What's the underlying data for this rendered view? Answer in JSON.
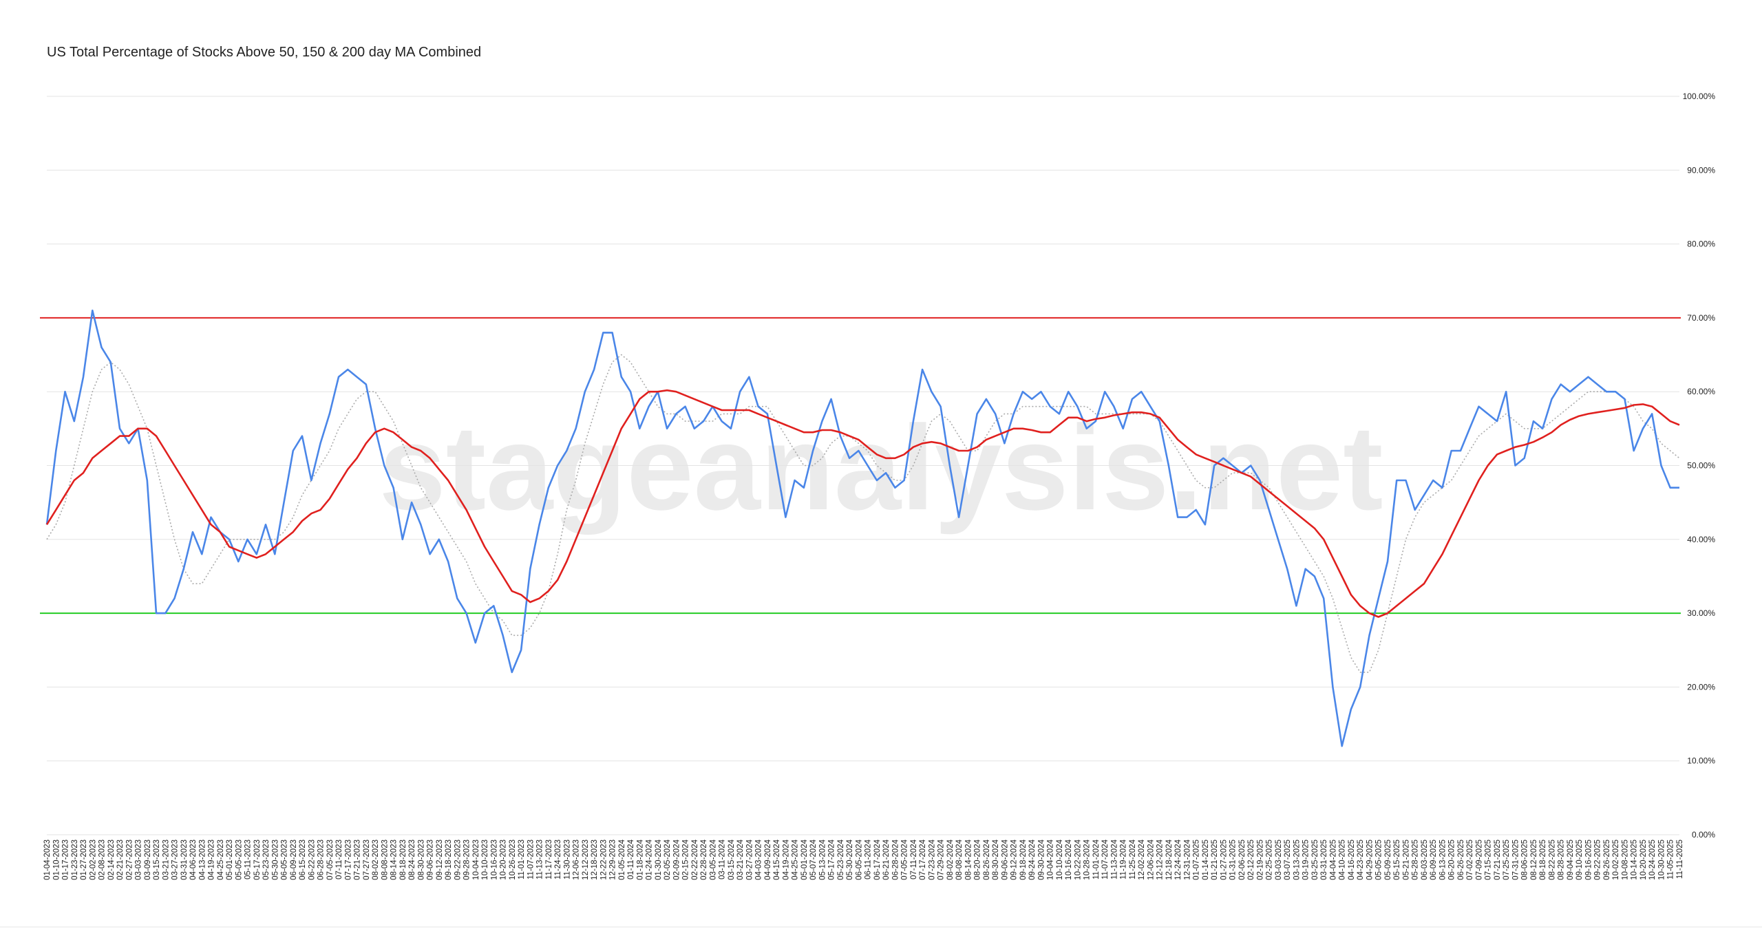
{
  "chart_data": {
    "type": "line",
    "title": "US Total Percentage of Stocks Above 50, 150 & 200 day MA Combined",
    "watermark": "stageanalysis.net",
    "categories": [
      "01-04-2023",
      "01-10-2023",
      "01-17-2023",
      "01-23-2023",
      "01-27-2023",
      "02-02-2023",
      "02-08-2023",
      "02-14-2023",
      "02-21-2023",
      "02-27-2023",
      "03-03-2023",
      "03-09-2023",
      "03-15-2023",
      "03-21-2023",
      "03-27-2023",
      "03-31-2023",
      "04-06-2023",
      "04-13-2023",
      "04-19-2023",
      "04-25-2023",
      "05-01-2023",
      "05-05-2023",
      "05-11-2023",
      "05-17-2023",
      "05-23-2023",
      "05-30-2023",
      "06-05-2023",
      "06-09-2023",
      "06-15-2023",
      "06-22-2023",
      "06-28-2023",
      "07-05-2023",
      "07-11-2023",
      "07-17-2023",
      "07-21-2023",
      "07-27-2023",
      "08-02-2023",
      "08-08-2023",
      "08-14-2023",
      "08-18-2023",
      "08-24-2023",
      "08-30-2023",
      "09-06-2023",
      "09-12-2023",
      "09-18-2023",
      "09-22-2023",
      "09-28-2023",
      "10-04-2023",
      "10-10-2023",
      "10-16-2023",
      "10-20-2023",
      "10-26-2023",
      "11-01-2023",
      "11-07-2023",
      "11-13-2023",
      "11-17-2023",
      "11-24-2023",
      "11-30-2023",
      "12-06-2023",
      "12-12-2023",
      "12-18-2023",
      "12-22-2023",
      "12-29-2023",
      "01-05-2024",
      "01-11-2024",
      "01-18-2024",
      "01-24-2024",
      "01-30-2024",
      "02-05-2024",
      "02-09-2024",
      "02-15-2024",
      "02-22-2024",
      "02-28-2024",
      "03-05-2024",
      "03-11-2024",
      "03-15-2024",
      "03-21-2024",
      "03-27-2024",
      "04-03-2024",
      "04-09-2024",
      "04-15-2024",
      "04-19-2024",
      "04-25-2024",
      "05-01-2024",
      "05-07-2024",
      "05-13-2024",
      "05-17-2024",
      "05-23-2024",
      "05-30-2024",
      "06-05-2024",
      "06-11-2024",
      "06-17-2024",
      "06-21-2024",
      "06-28-2024",
      "07-05-2024",
      "07-11-2024",
      "07-17-2024",
      "07-23-2024",
      "07-29-2024",
      "08-02-2024",
      "08-08-2024",
      "08-14-2024",
      "08-20-2024",
      "08-26-2024",
      "08-30-2024",
      "09-06-2024",
      "09-12-2024",
      "09-18-2024",
      "09-24-2024",
      "09-30-2024",
      "10-04-2024",
      "10-10-2024",
      "10-16-2024",
      "10-22-2024",
      "10-28-2024",
      "11-01-2024",
      "11-07-2024",
      "11-13-2024",
      "11-19-2024",
      "11-25-2024",
      "12-02-2024",
      "12-06-2024",
      "12-12-2024",
      "12-18-2024",
      "12-24-2024",
      "12-31-2024",
      "01-07-2025",
      "01-14-2025",
      "01-21-2025",
      "01-27-2025",
      "01-31-2025",
      "02-06-2025",
      "02-12-2025",
      "02-19-2025",
      "02-25-2025",
      "03-03-2025",
      "03-07-2025",
      "03-13-2025",
      "03-19-2025",
      "03-25-2025",
      "03-31-2025",
      "04-04-2025",
      "04-10-2025",
      "04-16-2025",
      "04-23-2025",
      "04-29-2025",
      "05-05-2025",
      "05-09-2025",
      "05-15-2025",
      "05-21-2025",
      "05-28-2025",
      "06-03-2025",
      "06-09-2025",
      "06-13-2025",
      "06-20-2025",
      "06-26-2025",
      "07-02-2025",
      "07-09-2025",
      "07-15-2025",
      "07-21-2025",
      "07-25-2025",
      "07-31-2025",
      "08-06-2025",
      "08-12-2025",
      "08-18-2025",
      "08-22-2025",
      "08-28-2025",
      "09-04-2025",
      "09-10-2025",
      "09-16-2025",
      "09-22-2025",
      "09-26-2025",
      "10-02-2025",
      "10-08-2025",
      "10-14-2025",
      "10-20-2025",
      "10-24-2025",
      "10-30-2025",
      "11-05-2025",
      "11-11-2025"
    ],
    "series": [
      {
        "color": "#aaaaaa",
        "dash": true,
        "values": [
          40,
          42,
          45,
          50,
          55,
          60,
          63,
          64,
          63,
          61,
          58,
          55,
          50,
          45,
          40,
          36,
          34,
          34,
          36,
          38,
          40,
          40,
          40,
          40,
          40,
          40,
          41,
          43,
          46,
          48,
          50,
          52,
          55,
          57,
          59,
          60,
          60,
          58,
          56,
          53,
          50,
          47,
          45,
          43,
          41,
          39,
          37,
          34,
          32,
          30,
          29,
          27,
          27,
          28,
          30,
          33,
          38,
          44,
          48,
          53,
          57,
          61,
          64,
          65,
          64,
          62,
          60,
          58,
          57,
          57,
          56,
          56,
          56,
          56,
          57,
          57,
          57,
          58,
          58,
          58,
          56,
          54,
          52,
          50,
          50,
          51,
          53,
          54,
          54,
          53,
          52,
          50,
          49,
          48,
          48,
          50,
          53,
          56,
          57,
          56,
          54,
          52,
          52,
          54,
          56,
          57,
          57,
          58,
          58,
          58,
          58,
          58,
          58,
          58,
          58,
          57,
          57,
          57,
          57,
          57,
          57,
          57,
          56,
          54,
          52,
          50,
          48,
          47,
          47,
          48,
          49,
          49,
          49,
          48,
          47,
          45,
          43,
          41,
          39,
          37,
          35,
          32,
          28,
          24,
          22,
          22,
          25,
          30,
          35,
          40,
          43,
          45,
          46,
          47,
          48,
          50,
          52,
          54,
          55,
          56,
          57,
          56,
          55,
          55,
          55,
          56,
          57,
          58,
          59,
          60,
          60,
          60,
          60,
          59,
          58,
          56,
          55,
          53,
          52,
          51
        ]
      },
      {
        "color": "#4a86e8",
        "dash": false,
        "values": [
          42,
          52,
          60,
          56,
          62,
          71,
          66,
          64,
          55,
          53,
          55,
          48,
          30,
          30,
          32,
          36,
          41,
          38,
          43,
          41,
          40,
          37,
          40,
          38,
          42,
          38,
          45,
          52,
          54,
          48,
          53,
          57,
          62,
          63,
          62,
          61,
          55,
          50,
          47,
          40,
          45,
          42,
          38,
          40,
          37,
          32,
          30,
          26,
          30,
          31,
          27,
          22,
          25,
          36,
          42,
          47,
          50,
          52,
          55,
          60,
          63,
          68,
          68,
          62,
          60,
          55,
          58,
          60,
          55,
          57,
          58,
          55,
          56,
          58,
          56,
          55,
          60,
          62,
          58,
          57,
          50,
          43,
          48,
          47,
          52,
          56,
          59,
          54,
          51,
          52,
          50,
          48,
          49,
          47,
          48,
          56,
          63,
          60,
          58,
          50,
          43,
          50,
          57,
          59,
          57,
          53,
          57,
          60,
          59,
          60,
          58,
          57,
          60,
          58,
          55,
          56,
          60,
          58,
          55,
          59,
          60,
          58,
          56,
          50,
          43,
          43,
          44,
          42,
          50,
          51,
          50,
          49,
          50,
          48,
          44,
          40,
          36,
          31,
          36,
          35,
          32,
          20,
          12,
          17,
          20,
          27,
          32,
          37,
          48,
          48,
          44,
          46,
          48,
          47,
          52,
          52,
          55,
          58,
          57,
          56,
          60,
          50,
          51,
          56,
          55,
          59,
          61,
          60,
          61,
          62,
          61,
          60,
          60,
          59,
          52,
          55,
          57,
          50,
          47,
          47
        ]
      },
      {
        "color": "#e0201e",
        "dash": false,
        "values": [
          42,
          44,
          46,
          48,
          49,
          51,
          52,
          53,
          54,
          54,
          55,
          55,
          54,
          52,
          50,
          48,
          46,
          44,
          42,
          41,
          39,
          38.5,
          38,
          37.5,
          38,
          39,
          40,
          41,
          42.5,
          43.5,
          44,
          45.5,
          47.5,
          49.5,
          51,
          53,
          54.5,
          55,
          54.5,
          53.5,
          52.5,
          52,
          51,
          49.5,
          48,
          46,
          44,
          41.5,
          39,
          37,
          35,
          33,
          32.5,
          31.5,
          32,
          33,
          34.5,
          37,
          40,
          43,
          46,
          49,
          52,
          55,
          57,
          59,
          60,
          60,
          60.2,
          60,
          59.5,
          59,
          58.5,
          58,
          57.5,
          57.5,
          57.5,
          57.5,
          57,
          56.5,
          56,
          55.5,
          55,
          54.5,
          54.5,
          54.8,
          54.8,
          54.5,
          54,
          53.5,
          52.5,
          51.5,
          51,
          51,
          51.5,
          52.5,
          53,
          53.2,
          53,
          52.5,
          52,
          52,
          52.5,
          53.5,
          54,
          54.5,
          55,
          55,
          54.8,
          54.5,
          54.5,
          55.5,
          56.5,
          56.5,
          56,
          56.3,
          56.5,
          56.8,
          57,
          57.2,
          57.2,
          57,
          56.5,
          55,
          53.5,
          52.5,
          51.5,
          51,
          50.5,
          50,
          49.5,
          49,
          48.5,
          47.5,
          46.5,
          45.5,
          44.5,
          43.5,
          42.5,
          41.5,
          40,
          37.5,
          35,
          32.5,
          31,
          30,
          29.5,
          30,
          31,
          32,
          33,
          34,
          36,
          38,
          40.5,
          43,
          45.5,
          48,
          50,
          51.5,
          52,
          52.5,
          52.8,
          53.2,
          53.8,
          54.5,
          55.5,
          56.2,
          56.7,
          57,
          57.2,
          57.4,
          57.6,
          57.8,
          58.2,
          58.3,
          58,
          57,
          56,
          55.5
        ]
      }
    ],
    "hlines": [
      {
        "value": 70,
        "color": "#e02020"
      },
      {
        "value": 30,
        "color": "#22cc22"
      }
    ],
    "ylim": [
      0,
      100
    ],
    "yticks": [
      {
        "value": 0,
        "label": "0.00%"
      },
      {
        "value": 10,
        "label": "10.00%"
      },
      {
        "value": 20,
        "label": "20.00%"
      },
      {
        "value": 30,
        "label": "30.00%"
      },
      {
        "value": 40,
        "label": "40.00%"
      },
      {
        "value": 50,
        "label": "50.00%"
      },
      {
        "value": 60,
        "label": "60.00%"
      },
      {
        "value": 70,
        "label": "70.00%"
      },
      {
        "value": 80,
        "label": "80.00%"
      },
      {
        "value": 90,
        "label": "90.00%"
      },
      {
        "value": 100,
        "label": "100.00%"
      }
    ],
    "grid": true
  }
}
